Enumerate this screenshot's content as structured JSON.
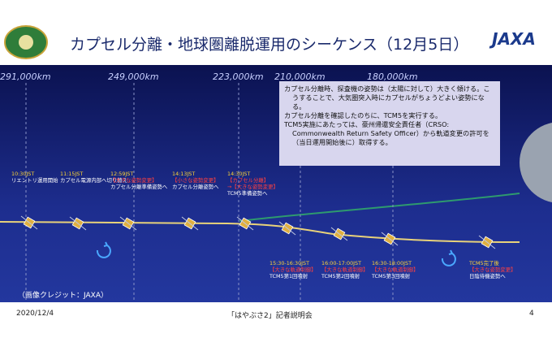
{
  "header": {
    "title": "カプセル分離・地球圏離脱運用のシーケンス（12月5日）",
    "logo": "JAXA"
  },
  "distances": [
    "291,000km",
    "249,000km",
    "223,000km",
    "210,000km",
    "180,000km"
  ],
  "info": {
    "bullets": [
      "カプセル分離時、探査機の姿勢は（太陽に対して）大きく傾ける。こうすることで、大気圏突入時にカプセルがちょうどよい姿勢になる。",
      "カプセル分離を確認したのちに、TCM5を実行する。",
      "TCM5実施にあたっては、豪州帰還安全責任者（CRSO: Commonwealth Return Safety Officer）から軌道変更の許可を（当日運用開始後に）取得する。"
    ]
  },
  "events": [
    {
      "time": "10:30JST",
      "notes": [],
      "label": "リエントリ運用開始"
    },
    {
      "time": "11:15JST",
      "notes": [],
      "label": "カプセル電源内部へ切り替え"
    },
    {
      "time": "12:59JST",
      "notes": [
        "【大きな姿勢変更】"
      ],
      "label": "カプセル分離準備姿勢へ"
    },
    {
      "time": "14:13JST",
      "notes": [
        "【小さな姿勢変更】"
      ],
      "label": "カプセル分離姿勢へ"
    },
    {
      "time": "14:30JST",
      "notes": [
        "【カプセル分離】",
        "→【大きな姿勢変更】"
      ],
      "label": "TCM5準備姿勢へ"
    },
    {
      "time": "15:30-16:30JST",
      "notes": [
        "【大きな軌道制御】"
      ],
      "label": "TCM5第1回噴射"
    },
    {
      "time": "16:00-17:00JST",
      "notes": [
        "【大きな軌道制御】"
      ],
      "label": "TCM5第2回噴射"
    },
    {
      "time": "16:30-18:00JST",
      "notes": [
        "【大きな軌道制御】"
      ],
      "label": "TCM5第3回噴射"
    },
    {
      "time": "TCM5完了後",
      "notes": [
        "【大きな姿勢変更】"
      ],
      "label": "日陰待機姿勢へ"
    }
  ],
  "credit": "（画像クレジット：JAXA）",
  "footer": {
    "date": "2020/12/4",
    "event": "「はやぶさ2」記者説明会",
    "page": "4"
  }
}
